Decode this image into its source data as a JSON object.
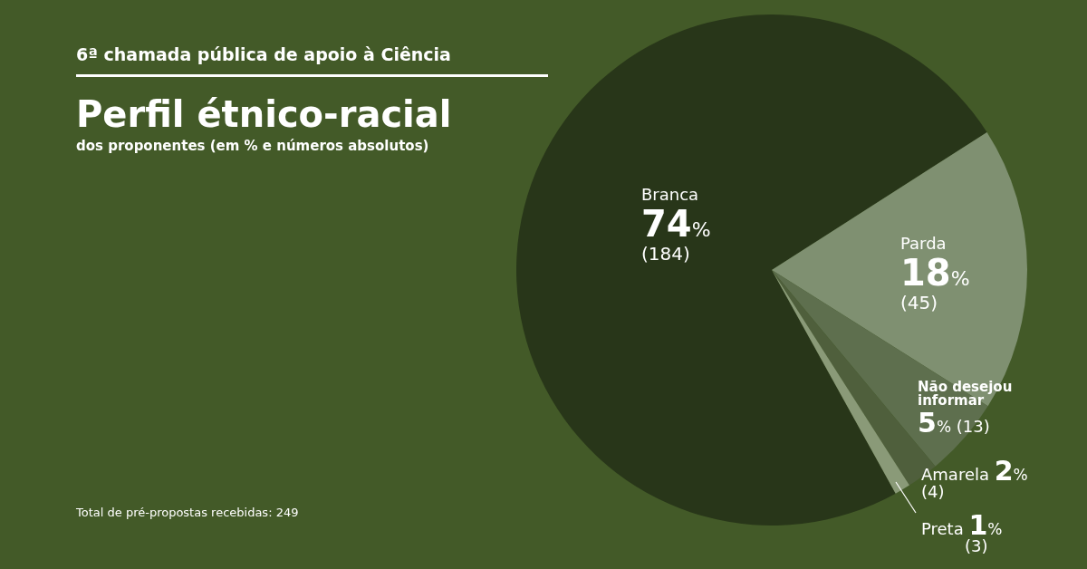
{
  "chart_data": {
    "type": "pie",
    "title": "Perfil étnico-racial",
    "subtitle": "dos proponentes (em % e números absolutos)",
    "annotations": [
      "6ª chamada pública de apoio à Ciência",
      "Total de pré-propostas recebidas: 249"
    ],
    "categories": [
      "Branca",
      "Parda",
      "Não desejou informar",
      "Amarela",
      "Preta"
    ],
    "values": [
      74,
      18,
      5,
      2,
      1
    ],
    "value_labels": [
      "74% (184)",
      "18% (45)",
      "5% (13)",
      "2% (4)",
      "1% (3)"
    ],
    "colors": [
      "#283619",
      "#7f9071",
      "#5e6f4e",
      "#4f5f3c",
      "#8a9a78"
    ]
  }
}
